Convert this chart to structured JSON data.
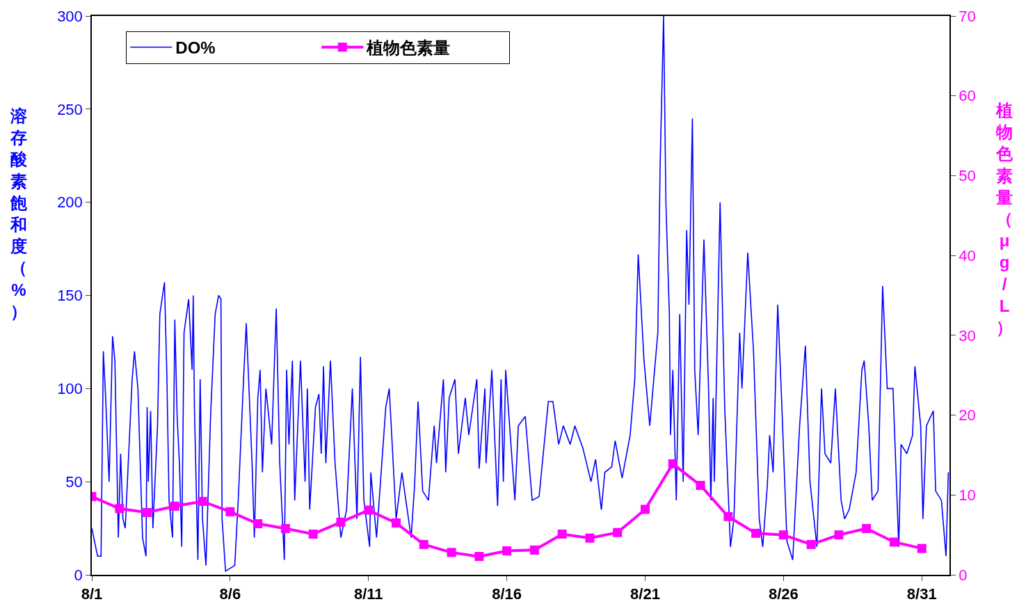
{
  "chart_data": {
    "type": "line",
    "xlim": [
      "--08-01",
      "--09-01"
    ],
    "xticks": [
      {
        "value": "--08-01",
        "label": "8/1"
      },
      {
        "value": "--08-06",
        "label": "8/6"
      },
      {
        "value": "--08-11",
        "label": "8/11"
      },
      {
        "value": "--08-16",
        "label": "8/16"
      },
      {
        "value": "--08-21",
        "label": "8/21"
      },
      {
        "value": "--08-26",
        "label": "8/26"
      },
      {
        "value": "--08-31",
        "label": "8/31"
      }
    ],
    "ylim": [
      0,
      300
    ],
    "yticks": [
      0,
      50,
      100,
      150,
      200,
      250,
      300
    ],
    "y2lim": [
      0,
      70
    ],
    "y2ticks": [
      0,
      10,
      20,
      30,
      40,
      50,
      60,
      70
    ],
    "ylabel": "溶存酸素飽和度（%）",
    "y2label": "植物色素量（μg/L）",
    "grid": false,
    "legend": "top left",
    "series": [
      {
        "name": "DO%",
        "color": "#0000ff",
        "marker": "none",
        "x": [
          "--08-01T00:00",
          "--08-01T05:00",
          "--08-01T08:00",
          "--08-01T10:00",
          "--08-01T12:00",
          "--08-01T15:00",
          "--08-01T18:00",
          "--08-01T20:00",
          "--08-01T23:00",
          "--08-02T01:00",
          "--08-02T03:00",
          "--08-02T05:00",
          "--08-02T11:00",
          "--08-02T13:00",
          "--08-02T16:00",
          "--08-02T20:00",
          "--08-02T23:00",
          "--08-03T00:00",
          "--08-03T01:00",
          "--08-03T03:00",
          "--08-03T05:00",
          "--08-03T09:00",
          "--08-03T11:00",
          "--08-03T15:00",
          "--08-03T17:00",
          "--08-03T19:00",
          "--08-03T22:00",
          "--08-04T00:00",
          "--08-04T02:00",
          "--08-04T04:00",
          "--08-04T06:00",
          "--08-04T08:00",
          "--08-04T12:00",
          "--08-04T15:00",
          "--08-04T16:00",
          "--08-04T17:00",
          "--08-04T20:00",
          "--08-04T22:00",
          "--08-05T00:00",
          "--08-05T03:00",
          "--08-05T07:00",
          "--08-05T11:00",
          "--08-05T14:00",
          "--08-05T16:00",
          "--08-05T17:00",
          "--08-05T20:00",
          "--08-06T04:00",
          "--08-06T07:00",
          "--08-06T12:00",
          "--08-06T14:00",
          "--08-06T19:00",
          "--08-06T21:00",
          "--08-07T00:00",
          "--08-07T02:00",
          "--08-07T04:00",
          "--08-07T07:00",
          "--08-07T12:00",
          "--08-07T16:00",
          "--08-07T19:00",
          "--08-07T23:00",
          "--08-08T01:00",
          "--08-08T03:00",
          "--08-08T06:00",
          "--08-08T08:00",
          "--08-08T13:00",
          "--08-08T17:00",
          "--08-08T19:00",
          "--08-08T21:00",
          "--08-09T02:00",
          "--08-09T05:00",
          "--08-09T07:00",
          "--08-09T09:00",
          "--08-09T11:00",
          "--08-09T15:00",
          "--08-09T19:00",
          "--08-10T00:00",
          "--08-10T05:00",
          "--08-10T10:00",
          "--08-10T14:00",
          "--08-10T17:00",
          "--08-10T20:00",
          "--08-11T01:00",
          "--08-11T02:00",
          "--08-11T07:00",
          "--08-11T15:00",
          "--08-11T18:00",
          "--08-12T00:00",
          "--08-12T05:00",
          "--08-12T13:00",
          "--08-12T16:00",
          "--08-12T19:00",
          "--08-12T23:00",
          "--08-13T04:00",
          "--08-13T09:00",
          "--08-13T11:00",
          "--08-13T17:00",
          "--08-13T19:00",
          "--08-13T22:00",
          "--08-14T03:00",
          "--08-14T06:00",
          "--08-14T12:00",
          "--08-14T15:00",
          "--08-14T22:00",
          "--08-15T00:00",
          "--08-15T05:00",
          "--08-15T06:00",
          "--08-15T11:00",
          "--08-15T16:00",
          "--08-15T19:00",
          "--08-15T21:00",
          "--08-15T23:00",
          "--08-16T07:00",
          "--08-16T10:00",
          "--08-16T16:00",
          "--08-16T22:00",
          "--08-17T04:00",
          "--08-17T12:00",
          "--08-17T16:00",
          "--08-17T21:00",
          "--08-18T01:00",
          "--08-18T07:00",
          "--08-18T11:00",
          "--08-18T18:00",
          "--08-19T01:00",
          "--08-19T05:00",
          "--08-19T10:00",
          "--08-19T13:00",
          "--08-19T19:00",
          "--08-19T22:00",
          "--08-20T04:00",
          "--08-20T11:00",
          "--08-20T15:00",
          "--08-20T18:00",
          "--08-20T23:00",
          "--08-21T04:00",
          "--08-21T11:00",
          "--08-21T13:00",
          "--08-21T16:00",
          "--08-21T18:00",
          "--08-21T21:00",
          "--08-21T22:00",
          "--08-22T00:00",
          "--08-22T03:00",
          "--08-22T06:00",
          "--08-22T09:00",
          "--08-22T12:00",
          "--08-22T14:00",
          "--08-22T17:00",
          "--08-22T19:00",
          "--08-22T22:00",
          "--08-23T03:00",
          "--08-23T07:00",
          "--08-23T09:00",
          "--08-23T11:00",
          "--08-23T12:00",
          "--08-23T17:00",
          "--08-23T21:00",
          "--08-24T02:00",
          "--08-24T05:00",
          "--08-24T10:00",
          "--08-24T12:00",
          "--08-24T17:00",
          "--08-24T22:00",
          "--08-25T03:00",
          "--08-25T06:00",
          "--08-25T10:00",
          "--08-25T12:00",
          "--08-25T15:00",
          "--08-25T19:00",
          "--08-25T22:00",
          "--08-26T03:00",
          "--08-26T08:00",
          "--08-26T14:00",
          "--08-26T19:00",
          "--08-26T23:00",
          "--08-27T05:00",
          "--08-27T09:00",
          "--08-27T12:00",
          "--08-27T17:00",
          "--08-27T21:00",
          "--08-28T02:00",
          "--08-28T05:00",
          "--08-28T09:00",
          "--08-28T15:00",
          "--08-28T20:00",
          "--08-28T22:00",
          "--08-29T02:00",
          "--08-29T05:00",
          "--08-29T10:00",
          "--08-29T14:00",
          "--08-29T18:00",
          "--08-29T23:00",
          "--08-30T04:00",
          "--08-30T06:00",
          "--08-30T11:00",
          "--08-30T16:00",
          "--08-30T18:00",
          "--08-30T23:00",
          "--08-31T01:00",
          "--08-31T04:00",
          "--08-31T10:00",
          "--08-31T12:00",
          "--08-31T17:00",
          "--08-31T21:00",
          "--08-31T23:00"
        ],
        "values": [
          25,
          10,
          10,
          120,
          95,
          50,
          128,
          115,
          20,
          65,
          30,
          25,
          105,
          120,
          100,
          20,
          10,
          90,
          50,
          88,
          25,
          80,
          140,
          157,
          110,
          40,
          20,
          137,
          85,
          60,
          15,
          130,
          148,
          110,
          150,
          90,
          8,
          105,
          30,
          5,
          85,
          140,
          150,
          148,
          30,
          2,
          5,
          40,
          110,
          135,
          60,
          20,
          95,
          110,
          55,
          100,
          70,
          143,
          60,
          8,
          110,
          70,
          115,
          40,
          115,
          50,
          100,
          35,
          90,
          97,
          65,
          112,
          60,
          115,
          60,
          20,
          35,
          100,
          30,
          117,
          40,
          15,
          55,
          20,
          90,
          100,
          30,
          55,
          20,
          48,
          93,
          45,
          40,
          80,
          60,
          105,
          55,
          95,
          105,
          65,
          95,
          75,
          105,
          57,
          100,
          60,
          110,
          37,
          105,
          50,
          110,
          40,
          80,
          85,
          40,
          42,
          93,
          93,
          70,
          80,
          70,
          80,
          68,
          50,
          62,
          35,
          55,
          58,
          72,
          52,
          75,
          105,
          172,
          115,
          80,
          130,
          220,
          300,
          200,
          140,
          75,
          110,
          40,
          140,
          50,
          185,
          145,
          245,
          110,
          75,
          180,
          100,
          40,
          95,
          50,
          200,
          90,
          15,
          30,
          130,
          100,
          173,
          120,
          30,
          15,
          48,
          75,
          55,
          145,
          100,
          18,
          8,
          80,
          123,
          50,
          15,
          100,
          65,
          60,
          100,
          40,
          30,
          35,
          55,
          110,
          115,
          80,
          40,
          45,
          155,
          100,
          100,
          15,
          70,
          65,
          75,
          112,
          80,
          30,
          80,
          88,
          45,
          40,
          10,
          55
        ]
      },
      {
        "name": "植物色素量",
        "color": "#ff00ff",
        "marker": "square",
        "axis": "y2",
        "x": [
          "--08-01",
          "--08-02",
          "--08-03",
          "--08-04",
          "--08-05",
          "--08-06",
          "--08-07",
          "--08-08",
          "--08-09",
          "--08-10",
          "--08-11",
          "--08-12",
          "--08-13",
          "--08-14",
          "--08-15",
          "--08-16",
          "--08-17",
          "--08-18",
          "--08-19",
          "--08-20",
          "--08-21",
          "--08-22",
          "--08-23",
          "--08-24",
          "--08-25",
          "--08-26",
          "--08-27",
          "--08-28",
          "--08-29",
          "--08-30",
          "--08-31"
        ],
        "values": [
          9.8,
          8.3,
          7.8,
          8.6,
          9.2,
          7.9,
          6.4,
          5.8,
          5.1,
          6.6,
          8.1,
          6.5,
          3.8,
          2.8,
          2.3,
          3.0,
          3.1,
          5.1,
          4.6,
          5.3,
          8.2,
          13.9,
          11.2,
          7.3,
          5.2,
          5.0,
          3.8,
          5.0,
          5.8,
          4.1,
          3.3
        ]
      }
    ]
  }
}
